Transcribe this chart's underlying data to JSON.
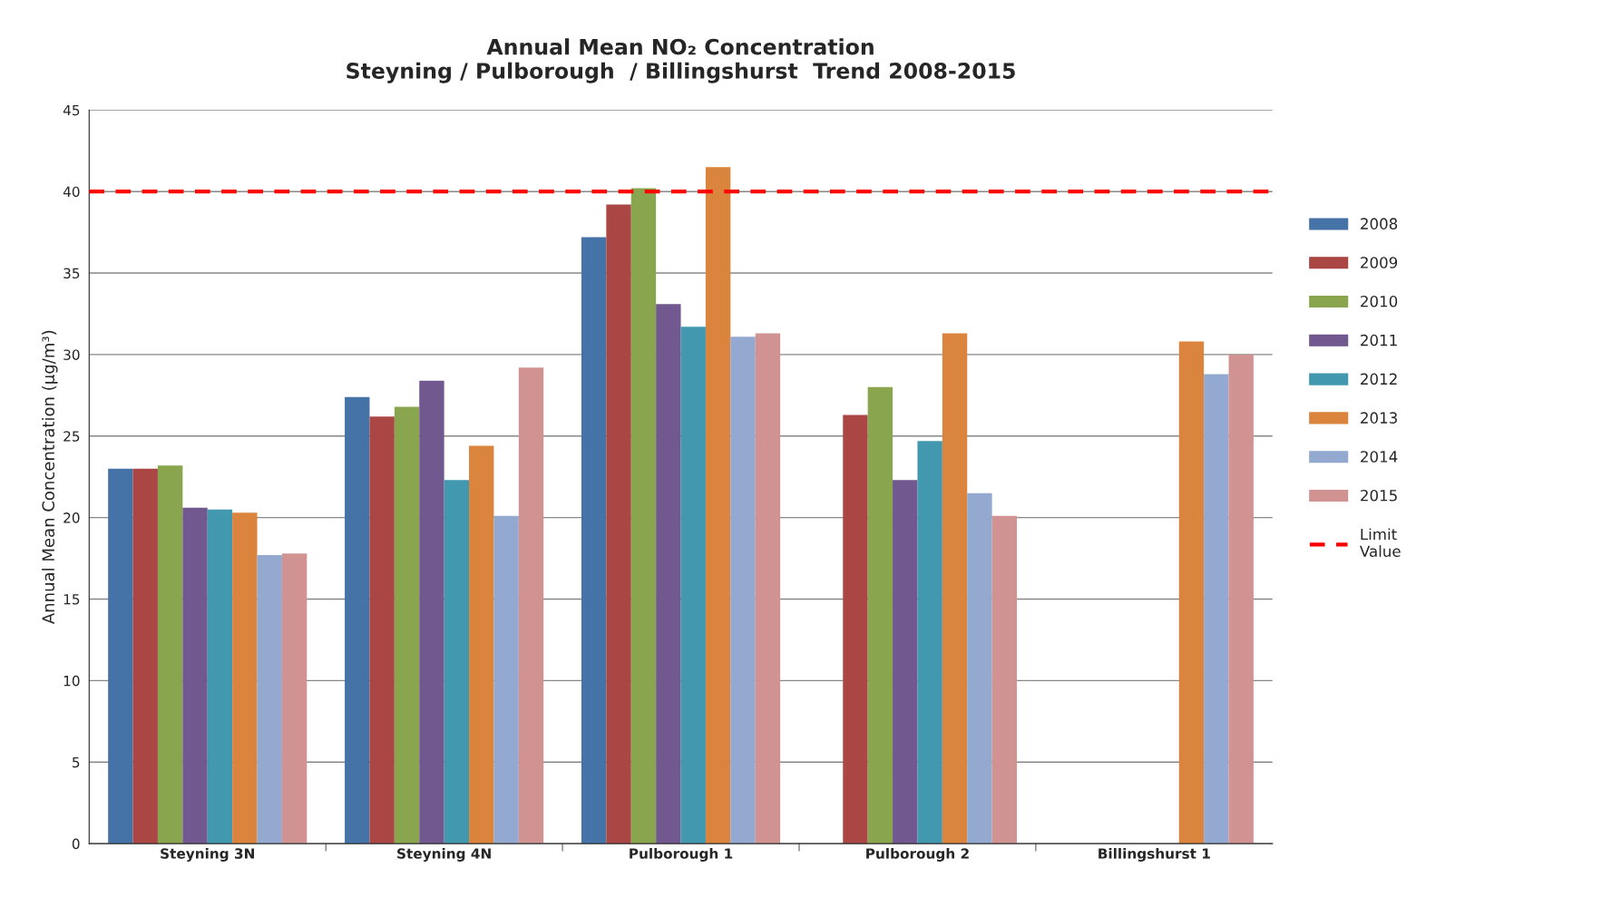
{
  "chart_data": {
    "type": "bar",
    "title": "Annual Mean NO₂ Concentration\nSteyning / Pulborough  / Billingshurst  Trend 2008-2015",
    "ylabel": "Annual Mean Concentration (µg/m³)",
    "categories": [
      "Steyning 3N",
      "Steyning 4N",
      "Pulborough 1",
      "Pulborough 2",
      "Billingshurst 1"
    ],
    "series": [
      {
        "name": "2008",
        "color": "#4572a7",
        "values": [
          23.0,
          27.4,
          37.2,
          null,
          null
        ]
      },
      {
        "name": "2009",
        "color": "#aa4643",
        "values": [
          23.0,
          26.2,
          39.2,
          26.3,
          null
        ]
      },
      {
        "name": "2010",
        "color": "#89a54e",
        "values": [
          23.2,
          26.8,
          40.2,
          28.0,
          null
        ]
      },
      {
        "name": "2011",
        "color": "#71588f",
        "values": [
          20.6,
          28.4,
          33.1,
          22.3,
          null
        ]
      },
      {
        "name": "2012",
        "color": "#4198af",
        "values": [
          20.5,
          22.3,
          31.7,
          24.7,
          null
        ]
      },
      {
        "name": "2013",
        "color": "#db843d",
        "values": [
          20.3,
          24.4,
          41.5,
          31.3,
          30.8
        ]
      },
      {
        "name": "2014",
        "color": "#93a9cf",
        "values": [
          17.7,
          20.1,
          31.1,
          21.5,
          28.8
        ]
      },
      {
        "name": "2015",
        "color": "#d19392",
        "values": [
          17.8,
          29.2,
          31.3,
          20.1,
          30.0
        ]
      }
    ],
    "ref_lines": [
      {
        "axis": "y",
        "value": 40,
        "label": "Limit\nValue",
        "color": "#ff0000",
        "line_style": "dashed"
      }
    ],
    "ylim": [
      0,
      45
    ],
    "yticks": [
      0,
      5,
      10,
      15,
      20,
      25,
      30,
      35,
      40,
      45
    ],
    "grid": "y",
    "legend": "right"
  }
}
